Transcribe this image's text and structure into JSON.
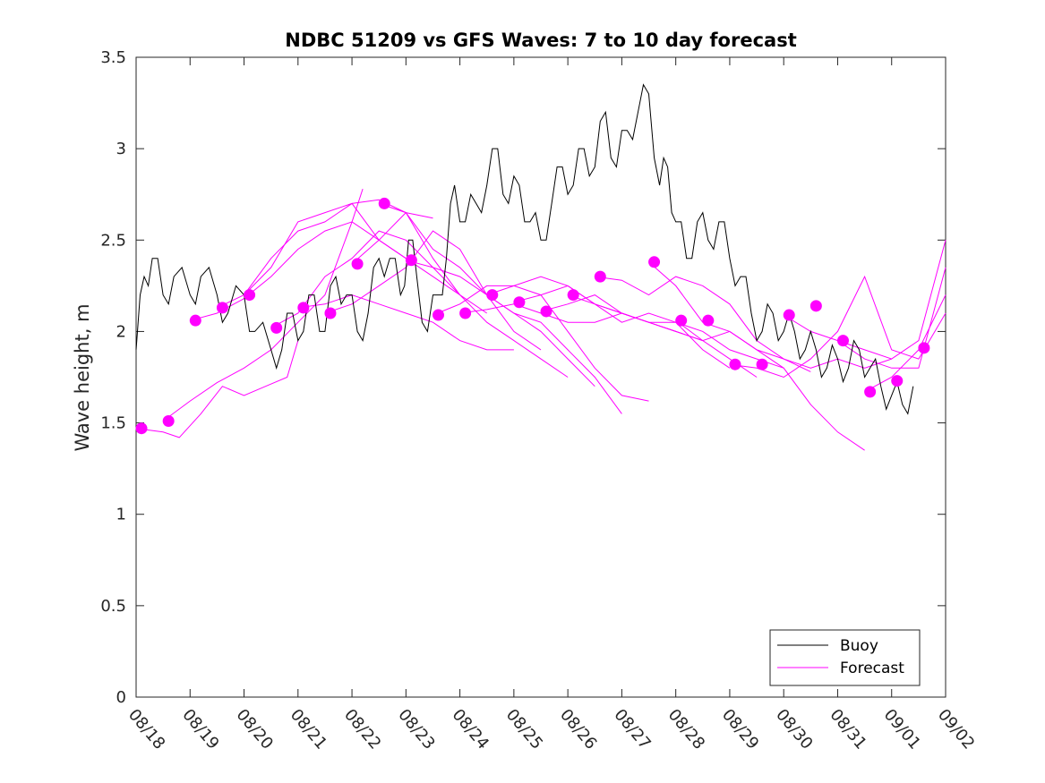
{
  "chart_data": {
    "type": "line",
    "title": "NDBC 51209 vs GFS Waves: 7 to 10 day forecast",
    "xlabel": "",
    "ylabel": "Wave height, m",
    "xlim": [
      0,
      15
    ],
    "ylim": [
      0,
      3.5
    ],
    "yticks": [
      0,
      0.5,
      1,
      1.5,
      2,
      2.5,
      3,
      3.5
    ],
    "ytick_labels": [
      "0",
      "0.5",
      "1",
      "1.5",
      "2",
      "2.5",
      "3",
      "3.5"
    ],
    "xtick_labels": [
      "08/18",
      "08/19",
      "08/20",
      "08/21",
      "08/22",
      "08/23",
      "08/24",
      "08/25",
      "08/26",
      "08/27",
      "08/28",
      "08/29",
      "08/30",
      "08/31",
      "09/01",
      "09/02"
    ],
    "legend": {
      "position": "bottom-right",
      "entries": [
        "Buoy",
        "Forecast"
      ]
    },
    "colors": {
      "buoy": "#000000",
      "forecast": "#ff00ff"
    },
    "series": [
      {
        "name": "Buoy",
        "x": [
          0,
          0.15,
          0.3,
          0.5,
          0.7,
          1.0,
          1.2,
          1.5,
          1.7,
          2.0,
          2.2,
          2.5,
          2.7,
          2.9,
          3.1,
          3.3,
          3.5,
          3.7,
          3.9,
          4.1,
          4.3,
          4.5,
          4.7,
          4.9,
          5.05,
          5.2,
          5.4,
          5.6,
          5.75,
          5.9,
          6.1,
          6.3,
          6.5,
          6.7,
          6.9,
          7.1,
          7.3,
          7.5,
          7.7,
          7.9,
          8.1,
          8.3,
          8.5,
          8.7,
          8.9,
          9.1,
          9.3,
          9.5,
          9.7,
          9.85,
          10.0,
          10.2,
          10.4,
          10.6,
          10.8,
          11.0,
          11.2,
          11.4,
          11.6,
          11.8,
          12.0,
          12.2,
          12.4,
          12.6,
          12.8,
          13.0,
          13.2,
          13.4,
          13.6,
          13.8,
          14.0,
          14.2,
          14.4
        ],
        "values": [
          1.9,
          2.3,
          2.4,
          2.2,
          2.3,
          2.2,
          2.3,
          2.2,
          2.1,
          2.2,
          2.0,
          1.9,
          1.9,
          2.1,
          2.0,
          2.2,
          2.0,
          2.3,
          2.2,
          2.0,
          2.1,
          2.4,
          2.4,
          2.2,
          2.5,
          2.3,
          2.0,
          2.2,
          2.4,
          2.8,
          2.6,
          2.7,
          2.8,
          3.0,
          2.7,
          2.8,
          2.6,
          2.5,
          2.7,
          2.9,
          2.8,
          3.0,
          2.9,
          3.2,
          2.9,
          3.1,
          3.2,
          3.3,
          2.8,
          2.9,
          2.6,
          2.4,
          2.6,
          2.5,
          2.6,
          2.4,
          2.3,
          2.1,
          2.0,
          2.1,
          2.0,
          2.0,
          1.9,
          1.9,
          1.8,
          1.85,
          1.8,
          1.9,
          1.8,
          1.7,
          1.65,
          1.6,
          1.7
        ]
      },
      {
        "name": "Forecast",
        "runs": [
          {
            "x": [
              0,
              0.5,
              0.8,
              1.2,
              1.6,
              2.0,
              2.4,
              2.8,
              3.0
            ],
            "values": [
              1.47,
              1.45,
              1.42,
              1.55,
              1.7,
              1.65,
              1.7,
              1.75,
              1.95
            ]
          },
          {
            "x": [
              0.5,
              1.0,
              1.5,
              2.0,
              2.5,
              3.0,
              3.5,
              4.0,
              4.2
            ],
            "values": [
              1.51,
              1.62,
              1.72,
              1.8,
              1.9,
              2.05,
              2.2,
              2.6,
              2.78
            ]
          },
          {
            "x": [
              1.0,
              1.5,
              2.0,
              2.5,
              3.0,
              3.5,
              4.0,
              4.5,
              5.0
            ],
            "values": [
              2.06,
              2.1,
              2.18,
              2.3,
              2.45,
              2.55,
              2.6,
              2.5,
              2.4
            ]
          },
          {
            "x": [
              1.5,
              2.0,
              2.5,
              3.0,
              3.5,
              4.0,
              4.5,
              5.0,
              5.5
            ],
            "values": [
              2.13,
              2.2,
              2.4,
              2.55,
              2.6,
              2.7,
              2.72,
              2.65,
              2.62
            ]
          },
          {
            "x": [
              2.0,
              2.5,
              3.0,
              3.5,
              4.0,
              4.5,
              5.0,
              5.5,
              6.0
            ],
            "values": [
              2.2,
              2.35,
              2.6,
              2.65,
              2.7,
              2.5,
              2.4,
              2.3,
              2.2
            ]
          },
          {
            "x": [
              2.5,
              3.0,
              3.5,
              4.0,
              4.5,
              5.0,
              5.5,
              6.0,
              6.5
            ],
            "values": [
              2.02,
              2.1,
              2.3,
              2.4,
              2.55,
              2.5,
              2.35,
              2.2,
              2.1
            ]
          },
          {
            "x": [
              3.0,
              3.5,
              4.0,
              4.5,
              5.0,
              5.5,
              6.0,
              6.5,
              7.0
            ],
            "values": [
              2.13,
              2.15,
              2.2,
              2.15,
              2.1,
              2.05,
              1.95,
              1.9,
              1.9
            ]
          },
          {
            "x": [
              3.5,
              4.0,
              4.5,
              5.0,
              5.5,
              6.0,
              6.5,
              7.0,
              7.5
            ],
            "values": [
              2.1,
              2.15,
              2.25,
              2.35,
              2.55,
              2.45,
              2.2,
              2.0,
              1.9
            ]
          },
          {
            "x": [
              4.0,
              4.5,
              5.0,
              5.5,
              6.0,
              6.5,
              7.0,
              7.5,
              8.0
            ],
            "values": [
              2.37,
              2.5,
              2.65,
              2.4,
              2.2,
              2.05,
              1.95,
              1.85,
              1.75
            ]
          },
          {
            "x": [
              4.5,
              5.0,
              5.5,
              6.0,
              6.5,
              7.0,
              7.5,
              8.0,
              8.5
            ],
            "values": [
              2.7,
              2.65,
              2.45,
              2.35,
              2.2,
              2.1,
              2.0,
              1.85,
              1.7
            ]
          },
          {
            "x": [
              5.0,
              5.5,
              6.0,
              6.5,
              7.0,
              7.5,
              8.0,
              8.5,
              9.0
            ],
            "values": [
              2.39,
              2.35,
              2.3,
              2.2,
              2.1,
              2.05,
              1.9,
              1.75,
              1.55
            ]
          },
          {
            "x": [
              5.5,
              6.0,
              6.5,
              7.0,
              7.5,
              8.0,
              8.5,
              9.0,
              9.5
            ],
            "values": [
              2.09,
              2.15,
              2.25,
              2.25,
              2.2,
              2.0,
              1.8,
              1.65,
              1.62
            ]
          },
          {
            "x": [
              6.0,
              6.5,
              7.0,
              7.5,
              8.0,
              8.5,
              9.0,
              9.5,
              10.0
            ],
            "values": [
              2.1,
              2.12,
              2.15,
              2.1,
              2.05,
              2.05,
              2.1,
              2.05,
              2.0
            ]
          },
          {
            "x": [
              6.5,
              7.0,
              7.5,
              8.0,
              8.5,
              9.0,
              9.5,
              10.0,
              10.5
            ],
            "values": [
              2.2,
              2.25,
              2.3,
              2.25,
              2.15,
              2.1,
              2.05,
              2.0,
              1.95
            ]
          },
          {
            "x": [
              7.0,
              7.5,
              8.0,
              8.5,
              9.0,
              9.5,
              10.0,
              10.5,
              11.0
            ],
            "values": [
              2.16,
              2.2,
              2.25,
              2.15,
              2.1,
              2.05,
              2.05,
              1.9,
              1.8
            ]
          },
          {
            "x": [
              7.5,
              8.0,
              8.5,
              9.0,
              9.5,
              10.0,
              10.5,
              11.0,
              11.5
            ],
            "values": [
              2.11,
              2.15,
              2.2,
              2.1,
              2.05,
              2.0,
              1.95,
              1.85,
              1.75
            ]
          },
          {
            "x": [
              8.0,
              8.5,
              9.0,
              9.5,
              10.0,
              10.5,
              11.0,
              11.5,
              12.0
            ],
            "values": [
              2.2,
              2.15,
              2.05,
              2.1,
              2.05,
              2.0,
              1.9,
              1.85,
              1.8
            ]
          },
          {
            "x": [
              8.5,
              9.0,
              9.5,
              10.0,
              10.5,
              11.0,
              11.5,
              12.0,
              12.5
            ],
            "values": [
              2.3,
              2.28,
              2.2,
              2.3,
              2.25,
              2.15,
              1.95,
              1.85,
              1.78
            ]
          },
          {
            "x": [
              9.5,
              10.0,
              10.5,
              11.0,
              11.5,
              12.0,
              12.5,
              13.0,
              13.5
            ],
            "values": [
              2.38,
              2.25,
              2.05,
              2.0,
              1.9,
              1.8,
              1.6,
              1.45,
              1.35
            ]
          },
          {
            "x": [
              10.0,
              10.5,
              11.0,
              11.5,
              12.0,
              12.5,
              13.0,
              13.5,
              14.0
            ],
            "values": [
              2.06,
              1.95,
              2.0,
              1.9,
              1.85,
              1.8,
              1.85,
              1.8,
              1.85
            ]
          },
          {
            "x": [
              11.0,
              11.5,
              12.0,
              12.5,
              13.0,
              13.5,
              14.0,
              14.5,
              15.0
            ],
            "values": [
              1.82,
              1.8,
              1.75,
              1.85,
              2.0,
              2.3,
              1.9,
              1.85,
              2.1
            ]
          },
          {
            "x": [
              12.0,
              12.5,
              13.0,
              13.5,
              14.0,
              14.5,
              15.0
            ],
            "values": [
              2.09,
              2.0,
              1.95,
              1.9,
              1.85,
              1.95,
              2.5
            ]
          },
          {
            "x": [
              13.0,
              13.5,
              14.0,
              14.5,
              15.0
            ],
            "values": [
              1.95,
              1.85,
              1.8,
              1.8,
              2.35
            ]
          },
          {
            "x": [
              13.5,
              14.0,
              14.5,
              15.0
            ],
            "values": [
              1.67,
              1.75,
              1.9,
              2.2
            ]
          }
        ],
        "markers": {
          "x": [
            0.1,
            0.6,
            1.1,
            1.6,
            2.1,
            2.6,
            3.1,
            3.6,
            4.1,
            4.6,
            5.1,
            5.6,
            6.1,
            6.6,
            7.1,
            7.6,
            8.1,
            8.6,
            9.6,
            10.1,
            10.6,
            11.1,
            11.6,
            12.1,
            12.6,
            13.1,
            13.6,
            14.1,
            14.6
          ],
          "values": [
            1.47,
            1.51,
            2.06,
            2.13,
            2.2,
            2.02,
            2.13,
            2.1,
            2.37,
            2.7,
            2.39,
            2.09,
            2.1,
            2.2,
            2.16,
            2.11,
            2.2,
            2.3,
            2.38,
            2.06,
            2.06,
            1.82,
            1.82,
            2.09,
            2.14,
            1.95,
            1.67,
            1.73,
            1.91
          ]
        }
      }
    ]
  }
}
